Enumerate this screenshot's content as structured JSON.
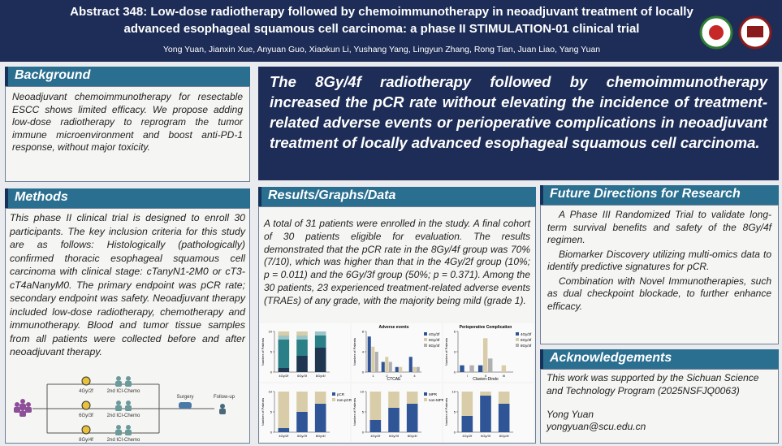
{
  "header": {
    "title_line1": "Abstract 348: Low-dose radiotherapy followed by chemoimmunotherapy in neoadjuvant treatment of locally",
    "title_line2": "advanced esophageal squamous cell carcinoma: a phase II STIMULATION-01 clinical trial",
    "authors": "Yong Yuan, Jianxin Xue, Anyuan Guo, Xiaokun Li, Yushang Yang, Lingyun Zhang, Rong Tian, Juan Liao, Yang Yuan"
  },
  "background": {
    "heading": "Background",
    "text": "Neoadjuvant chemoimmunotherapy for resectable ESCC shows limited efficacy. We propose adding low-dose radiotherapy to reprogram the tumor immune microenvironment and boost anti-PD-1 response, without major toxicity."
  },
  "conclusion": {
    "text": "The 8Gy/4f radiotherapy followed by chemoimmunotherapy increased the pCR rate without elevating the incidence of treatment-related adverse events or perioperative complications in neoadjuvant treatment of locally advanced esophageal squamous cell carcinoma."
  },
  "methods": {
    "heading": "Methods",
    "text": "This phase II clinical trial is designed to enroll 30 participants. The key inclusion criteria for this study are as follows: Histologically (pathologically) confirmed thoracic esophageal squamous cell carcinoma with clinical stage: cTanyN1-2M0 or cT3-cT4aNanyM0. The primary endpoint was pCR rate; secondary endpoint was safety. Neoadjuvant therapy included low-dose radiotherapy, chemotherapy and immunotherapy. Blood and tumor tissue samples from all patients were collected before and after neoadjuvant therapy.",
    "flow": {
      "arms": [
        {
          "dose": "4Gy/2f",
          "chemo": "2nd ICI-Chemo"
        },
        {
          "dose": "6Gy/3f",
          "chemo": "2nd ICI-Chemo"
        },
        {
          "dose": "8Gy/4f",
          "chemo": "2nd ICI-Chemo"
        }
      ],
      "surgery": "Surgery",
      "followup": "Follow-up"
    }
  },
  "results": {
    "heading": "Results/Graphs/Data",
    "text": "A total of 31 patients were enrolled in the study. A final cohort of 30 patients eligible for evaluation. The results demonstrated that the pCR rate in the 8Gy/4f group was 70% (7/10), which was higher than that in the 4Gy/2f group (10%; p = 0.011) and the 6Gy/3f group (50%; p = 0.371). Among the 30 patients, 23 experienced treatment-related adverse events (TRAEs) of any grade, with the majority being mild (grade 1).",
    "figures": [
      {
        "type": "stacked",
        "ylabel": "Number of Patients",
        "categories": [
          "4Gy/2f",
          "6Gy/3f",
          "8Gy/4f"
        ],
        "ylim": [
          0,
          10
        ],
        "yticks": [
          0,
          5,
          10
        ],
        "series": [
          {
            "color": "#1f3550",
            "values": [
              1,
              4,
              6
            ]
          },
          {
            "color": "#2b7f86",
            "values": [
              7,
              4,
              3
            ]
          },
          {
            "color": "#9cc5c7",
            "values": [
              1,
              1,
              1
            ]
          },
          {
            "color": "#d8cda8",
            "values": [
              1,
              1,
              0
            ]
          }
        ]
      },
      {
        "type": "grouped",
        "title": "Adverse events",
        "xlabel": "CTCAE",
        "ylabel": "Number of Patients",
        "categories": [
          "1",
          "2",
          "3",
          "4"
        ],
        "ylim": [
          0,
          8
        ],
        "yticks": [
          0,
          4,
          8
        ],
        "series": [
          {
            "name": "4Gy/2f",
            "color": "#2f5597",
            "values": [
              7,
              2,
              1,
              3
            ]
          },
          {
            "name": "6Gy/3f",
            "color": "#d8cda8",
            "values": [
              5,
              3,
              1,
              1
            ]
          },
          {
            "name": "8Gy/4f",
            "color": "#b0b0b0",
            "values": [
              4,
              2,
              0,
              1
            ]
          }
        ]
      },
      {
        "type": "grouped",
        "title": "Perioperative Complication",
        "xlabel": "Clavien-Dindo",
        "ylabel": "Number of Patients",
        "categories": [
          "I",
          "II",
          "III"
        ],
        "ylim": [
          0,
          6
        ],
        "yticks": [
          0,
          3,
          6
        ],
        "series": [
          {
            "name": "4Gy/2f",
            "color": "#2f5597",
            "values": [
              1,
              1,
              0
            ]
          },
          {
            "name": "6Gy/3f",
            "color": "#d8cda8",
            "values": [
              0,
              5,
              1
            ]
          },
          {
            "name": "8Gy/4f",
            "color": "#b0b0b0",
            "values": [
              1,
              2,
              0
            ]
          }
        ]
      },
      {
        "type": "stacked",
        "ylabel": "Number of Patients",
        "categories": [
          "4Gy/2f",
          "6Gy/3f",
          "8Gy/4f"
        ],
        "ylim": [
          0,
          10
        ],
        "yticks": [
          0,
          5,
          10
        ],
        "series": [
          {
            "name": "pCR",
            "color": "#2f5597",
            "values": [
              1,
              5,
              7
            ]
          },
          {
            "name": "non-pCR",
            "color": "#d8cda8",
            "values": [
              9,
              5,
              3
            ]
          }
        ]
      },
      {
        "type": "stacked",
        "ylabel": "Number of Patients",
        "categories": [
          "4Gy/2f",
          "6Gy/3f",
          "8Gy/4f"
        ],
        "ylim": [
          0,
          10
        ],
        "yticks": [
          0,
          5,
          10
        ],
        "series": [
          {
            "name": "MPR",
            "color": "#2f5597",
            "values": [
              3,
              6,
              7
            ]
          },
          {
            "name": "non-MPR",
            "color": "#d8cda8",
            "values": [
              7,
              4,
              3
            ]
          }
        ]
      },
      {
        "type": "stacked",
        "ylabel": "Number of Patients",
        "categories": [
          "4Gy/2f",
          "6Gy/3f",
          "8Gy/4f"
        ],
        "ylim": [
          0,
          10
        ],
        "yticks": [
          0,
          5,
          10
        ],
        "series": [
          {
            "color": "#2f5597",
            "values": [
              4,
              9,
              7
            ]
          },
          {
            "color": "#d8cda8",
            "values": [
              6,
              1,
              3
            ]
          }
        ]
      }
    ]
  },
  "future": {
    "heading": "Future Directions for Research",
    "items": [
      "A Phase III Randomized Trial to validate long-term survival benefits and safety of the 8Gy/4f regimen.",
      "Biomarker Discovery utilizing multi-omics data to identify predictive signatures for pCR.",
      "Combination with Novel Immunotherapies, such as dual checkpoint blockade, to further enhance efficacy."
    ]
  },
  "acknowledgements": {
    "heading": "Acknowledgements",
    "text": "This work was supported by the Sichuan Science and Technology Program (2025NSFJQ0063)",
    "name": "Yong Yuan",
    "email": "yongyuan@scu.edu.cn"
  }
}
